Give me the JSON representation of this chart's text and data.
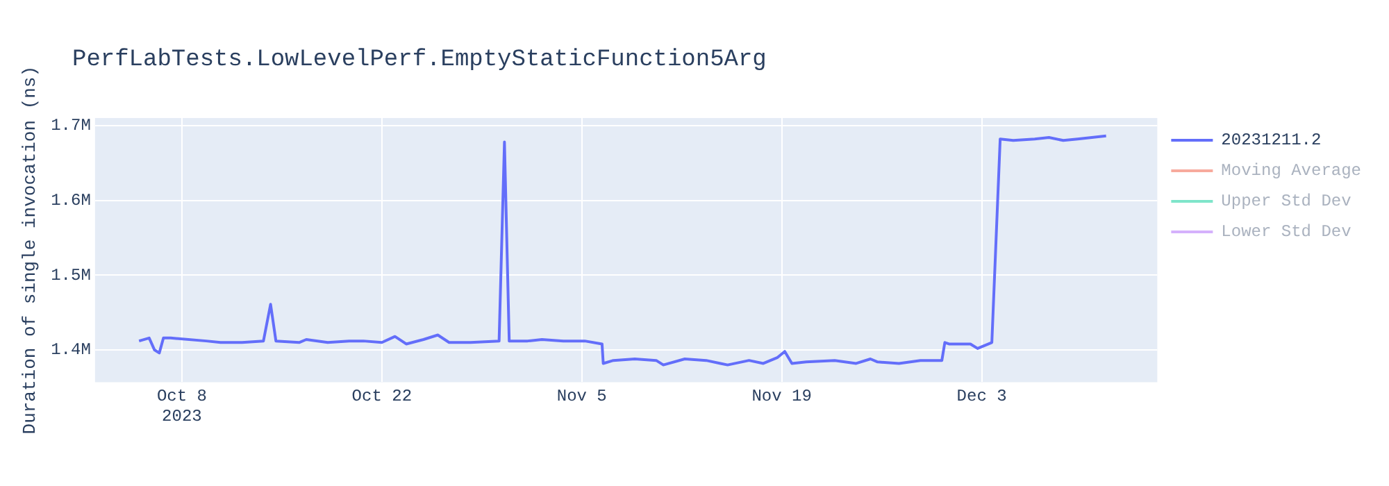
{
  "chart_data": {
    "type": "line",
    "title": "PerfLabTests.LowLevelPerf.EmptyStaticFunction5Arg",
    "ylabel": "Duration of single invocation (ns)",
    "xlim": [
      "2023-10-01T22:00",
      "2023-12-15T07:00"
    ],
    "xticks": [
      {
        "value": "2023-10-08",
        "label": "Oct 8\n2023"
      },
      {
        "value": "2023-10-22",
        "label": "Oct 22"
      },
      {
        "value": "2023-11-05",
        "label": "Nov 5"
      },
      {
        "value": "2023-11-19",
        "label": "Nov 19"
      },
      {
        "value": "2023-12-03",
        "label": "Dec 3"
      }
    ],
    "ylim": [
      1357000,
      1710000
    ],
    "yticks": [
      {
        "value": 1400000,
        "label": "1.4M"
      },
      {
        "value": 1500000,
        "label": "1.5M"
      },
      {
        "value": 1600000,
        "label": "1.6M"
      },
      {
        "value": 1700000,
        "label": "1.7M"
      }
    ],
    "grid": true,
    "legend": "right",
    "marker": "none",
    "line_style": "solid",
    "series": [
      {
        "name": "20231211.2",
        "color": "#636efa",
        "x": [
          "2023-10-05T00:00",
          "2023-10-05T17:00",
          "2023-10-06T02:00",
          "2023-10-06T10:00",
          "2023-10-06T17:00",
          "2023-10-07T05:00",
          "2023-10-09T17:00",
          "2023-10-10T17:00",
          "2023-10-12T05:00",
          "2023-10-13T17:00",
          "2023-10-14T05:00",
          "2023-10-14T14:00",
          "2023-10-16T05:00",
          "2023-10-16T17:00",
          "2023-10-18T05:00",
          "2023-10-19T17:00",
          "2023-10-20T17:00",
          "2023-10-22T00:00",
          "2023-10-22T22:00",
          "2023-10-23T17:00",
          "2023-10-24T22:00",
          "2023-10-25T22:00",
          "2023-10-26T17:00",
          "2023-10-28T05:00",
          "2023-10-30T05:00",
          "2023-10-30T14:00",
          "2023-10-30T22:00",
          "2023-11-01T05:00",
          "2023-11-02T05:00",
          "2023-11-03T17:00",
          "2023-11-05T05:00",
          "2023-11-06T10:00",
          "2023-11-06T12:00",
          "2023-11-07T05:00",
          "2023-11-08T17:00",
          "2023-11-10T05:00",
          "2023-11-10T17:00",
          "2023-11-12T05:00",
          "2023-11-13T17:00",
          "2023-11-14T17:00",
          "2023-11-15T05:00",
          "2023-11-16T17:00",
          "2023-11-17T17:00",
          "2023-11-18T17:00",
          "2023-11-19T05:00",
          "2023-11-19T17:00",
          "2023-11-20T17:00",
          "2023-11-22T17:00",
          "2023-11-24T05:00",
          "2023-11-25T05:00",
          "2023-11-25T17:00",
          "2023-11-27T05:00",
          "2023-11-28T17:00",
          "2023-11-30T05:00",
          "2023-11-30T10:00",
          "2023-11-30T17:00",
          "2023-12-02T05:00",
          "2023-12-02T17:00",
          "2023-12-03T17:00",
          "2023-12-04T07:00",
          "2023-12-05T05:00",
          "2023-12-06T17:00",
          "2023-12-07T17:00",
          "2023-12-08T17:00",
          "2023-12-09T17:00",
          "2023-12-11T17:00"
        ],
        "values": [
          1412000,
          1416000,
          1400000,
          1396000,
          1416000,
          1416000,
          1412000,
          1410000,
          1410000,
          1412000,
          1461000,
          1412000,
          1410000,
          1414000,
          1410000,
          1412000,
          1412000,
          1410000,
          1418000,
          1408000,
          1414000,
          1420000,
          1410000,
          1410000,
          1412000,
          1678000,
          1412000,
          1412000,
          1414000,
          1412000,
          1412000,
          1408000,
          1382000,
          1386000,
          1388000,
          1386000,
          1380000,
          1388000,
          1386000,
          1382000,
          1380000,
          1386000,
          1382000,
          1390000,
          1398000,
          1382000,
          1384000,
          1386000,
          1382000,
          1388000,
          1384000,
          1382000,
          1386000,
          1386000,
          1410000,
          1408000,
          1408000,
          1402000,
          1410000,
          1682000,
          1680000,
          1682000,
          1684000,
          1680000,
          1682000,
          1686000
        ]
      },
      {
        "name": "Moving Average",
        "color": "#ef553b"
      },
      {
        "name": "Upper Std Dev",
        "color": "#00cc96"
      },
      {
        "name": "Lower Std Dev",
        "color": "#ab63fa"
      }
    ]
  }
}
